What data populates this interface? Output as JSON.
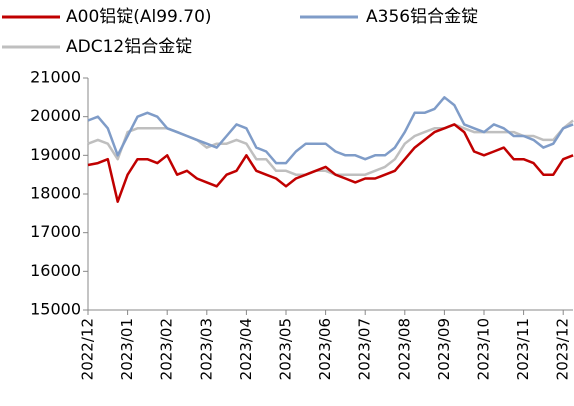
{
  "chart_data": {
    "type": "line",
    "categories": [
      "2022/12",
      null,
      null,
      null,
      "2023/01",
      null,
      null,
      null,
      "2023/02",
      null,
      null,
      null,
      "2023/03",
      null,
      null,
      null,
      "2023/04",
      null,
      null,
      null,
      "2023/05",
      null,
      null,
      null,
      "2023/06",
      null,
      null,
      null,
      "2023/07",
      null,
      null,
      null,
      "2023/08",
      null,
      null,
      null,
      "2023/09",
      null,
      null,
      null,
      "2023/10",
      null,
      null,
      null,
      "2023/11",
      null,
      null,
      null,
      "2023/12",
      null
    ],
    "series": [
      {
        "name": "A00铝锭(Al99.70)",
        "color": "#c00000",
        "values": [
          18750,
          18800,
          18900,
          17800,
          18500,
          18900,
          18900,
          18800,
          19000,
          18500,
          18600,
          18400,
          18300,
          18200,
          18500,
          18600,
          19000,
          18600,
          18500,
          18400,
          18200,
          18400,
          18500,
          18600,
          18700,
          18500,
          18400,
          18300,
          18400,
          18400,
          18500,
          18600,
          18900,
          19200,
          19400,
          19600,
          19700,
          19800,
          19600,
          19100,
          19000,
          19100,
          19200,
          18900,
          18900,
          18800,
          18500,
          18500,
          18900,
          19000
        ]
      },
      {
        "name": "A356铝合金锭",
        "color": "#7f9cc8",
        "values": [
          19900,
          20000,
          19700,
          19000,
          19500,
          20000,
          20100,
          20000,
          19700,
          19600,
          19500,
          19400,
          19300,
          19200,
          19500,
          19800,
          19700,
          19200,
          19100,
          18800,
          18800,
          19100,
          19300,
          19300,
          19300,
          19100,
          19000,
          19000,
          18900,
          19000,
          19000,
          19200,
          19600,
          20100,
          20100,
          20200,
          20500,
          20300,
          19800,
          19700,
          19600,
          19800,
          19700,
          19500,
          19500,
          19400,
          19200,
          19300,
          19700,
          19800
        ]
      },
      {
        "name": "ADC12铝合金锭",
        "color": "#bfbfbf",
        "values": [
          19300,
          19400,
          19300,
          18900,
          19600,
          19700,
          19700,
          19700,
          19700,
          19600,
          19500,
          19400,
          19200,
          19300,
          19300,
          19400,
          19300,
          18900,
          18900,
          18600,
          18600,
          18500,
          18500,
          18600,
          18600,
          18500,
          18500,
          18500,
          18500,
          18600,
          18700,
          18900,
          19300,
          19500,
          19600,
          19700,
          19700,
          19800,
          19700,
          19600,
          19600,
          19600,
          19600,
          19600,
          19500,
          19500,
          19400,
          19400,
          19700,
          19900
        ]
      }
    ],
    "ylim": [
      15000,
      21000
    ],
    "yticks": [
      15000,
      16000,
      17000,
      18000,
      19000,
      20000,
      21000
    ]
  }
}
